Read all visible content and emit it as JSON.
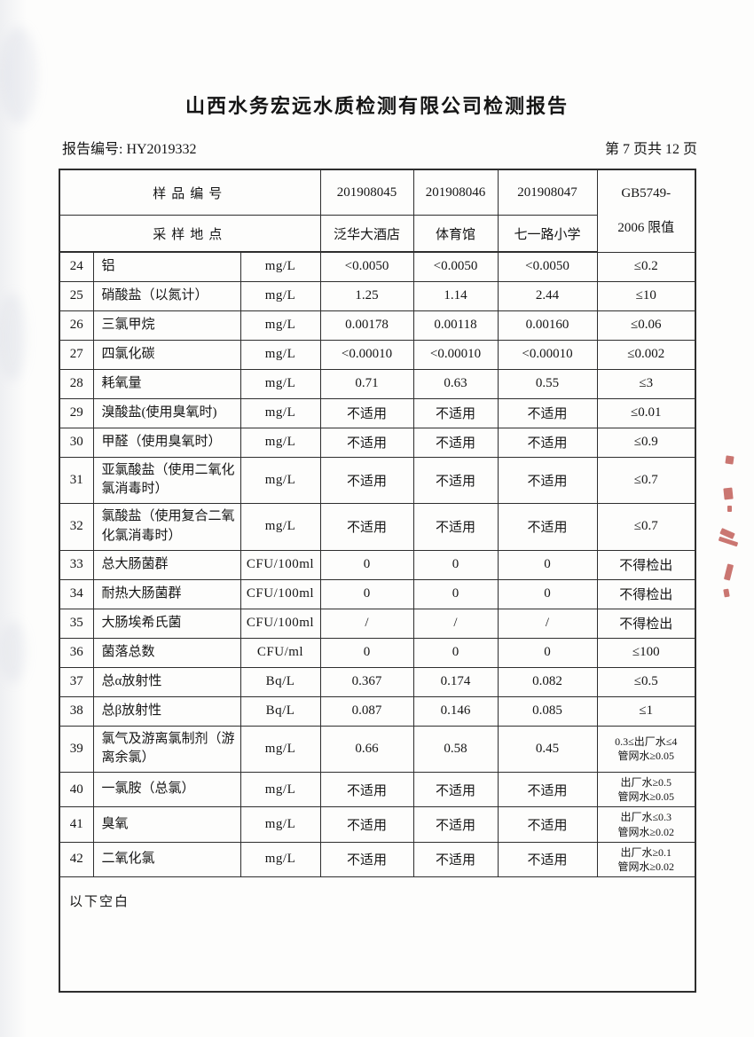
{
  "page": {
    "title": "山西水务宏远水质检测有限公司检测报告",
    "report_no": "报告编号: HY2019332",
    "page_info": "第 7 页共 12 页"
  },
  "table": {
    "header": {
      "sample_id_label": "样品编号",
      "location_label": "采样地点",
      "sample_ids": [
        "201908045",
        "201908046",
        "201908047"
      ],
      "locations": [
        "泛华大酒店",
        "体育馆",
        "七一路小学"
      ],
      "limit_header_line1": "GB5749-",
      "limit_header_line2": "2006 限值"
    },
    "rows": [
      {
        "no": "24",
        "name": "铝",
        "unit": "mg/L",
        "values": [
          "<0.0050",
          "<0.0050",
          "<0.0050"
        ],
        "limit": "≤0.2"
      },
      {
        "no": "25",
        "name": "硝酸盐（以氮计）",
        "unit": "mg/L",
        "values": [
          "1.25",
          "1.14",
          "2.44"
        ],
        "limit": "≤10"
      },
      {
        "no": "26",
        "name": "三氯甲烷",
        "unit": "mg/L",
        "values": [
          "0.00178",
          "0.00118",
          "0.00160"
        ],
        "limit": "≤0.06"
      },
      {
        "no": "27",
        "name": "四氯化碳",
        "unit": "mg/L",
        "values": [
          "<0.00010",
          "<0.00010",
          "<0.00010"
        ],
        "limit": "≤0.002"
      },
      {
        "no": "28",
        "name": "耗氧量",
        "unit": "mg/L",
        "values": [
          "0.71",
          "0.63",
          "0.55"
        ],
        "limit": "≤3"
      },
      {
        "no": "29",
        "name": "溴酸盐(使用臭氧时)",
        "unit": "mg/L",
        "values": [
          "不适用",
          "不适用",
          "不适用"
        ],
        "limit": "≤0.01"
      },
      {
        "no": "30",
        "name": "甲醛（使用臭氧时）",
        "unit": "mg/L",
        "values": [
          "不适用",
          "不适用",
          "不适用"
        ],
        "limit": "≤0.9"
      },
      {
        "no": "31",
        "name": "亚氯酸盐（使用二氧化氯消毒时）",
        "unit": "mg/L",
        "values": [
          "不适用",
          "不适用",
          "不适用"
        ],
        "limit": "≤0.7"
      },
      {
        "no": "32",
        "name": "氯酸盐（使用复合二氧化氯消毒时）",
        "unit": "mg/L",
        "values": [
          "不适用",
          "不适用",
          "不适用"
        ],
        "limit": "≤0.7"
      },
      {
        "no": "33",
        "name": "总大肠菌群",
        "unit": "CFU/100ml",
        "values": [
          "0",
          "0",
          "0"
        ],
        "limit": "不得检出"
      },
      {
        "no": "34",
        "name": "耐热大肠菌群",
        "unit": "CFU/100ml",
        "values": [
          "0",
          "0",
          "0"
        ],
        "limit": "不得检出"
      },
      {
        "no": "35",
        "name": "大肠埃希氏菌",
        "unit": "CFU/100ml",
        "values": [
          "/",
          "/",
          "/"
        ],
        "limit": "不得检出"
      },
      {
        "no": "36",
        "name": "菌落总数",
        "unit": "CFU/ml",
        "values": [
          "0",
          "0",
          "0"
        ],
        "limit": "≤100"
      },
      {
        "no": "37",
        "name": "总α放射性",
        "unit": "Bq/L",
        "values": [
          "0.367",
          "0.174",
          "0.082"
        ],
        "limit": "≤0.5"
      },
      {
        "no": "38",
        "name": "总β放射性",
        "unit": "Bq/L",
        "values": [
          "0.087",
          "0.146",
          "0.085"
        ],
        "limit": "≤1"
      },
      {
        "no": "39",
        "name": "氯气及游离氯制剂（游离余氯）",
        "unit": "mg/L",
        "values": [
          "0.66",
          "0.58",
          "0.45"
        ],
        "limit_lines": [
          "0.3≤出厂水≤4",
          "管网水≥0.05"
        ]
      },
      {
        "no": "40",
        "name": "一氯胺（总氯）",
        "unit": "mg/L",
        "values": [
          "不适用",
          "不适用",
          "不适用"
        ],
        "limit_lines": [
          "出厂水≥0.5",
          "管网水≥0.05"
        ]
      },
      {
        "no": "41",
        "name": "臭氧",
        "unit": "mg/L",
        "values": [
          "不适用",
          "不适用",
          "不适用"
        ],
        "limit_lines": [
          "出厂水≤0.3",
          "管网水≥0.02"
        ]
      },
      {
        "no": "42",
        "name": "二氧化氯",
        "unit": "mg/L",
        "values": [
          "不适用",
          "不适用",
          "不适用"
        ],
        "limit_lines": [
          "出厂水≥0.1",
          "管网水≥0.02"
        ]
      }
    ],
    "blank_note": "以下空白"
  }
}
